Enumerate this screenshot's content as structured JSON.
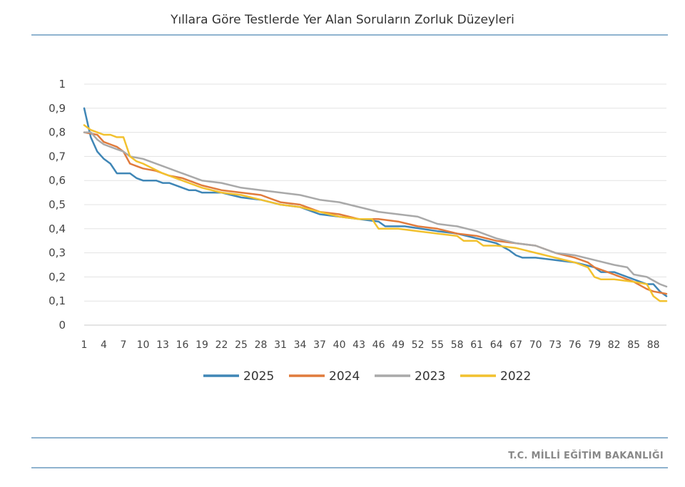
{
  "header": {
    "title": "Yıllara Göre Testlerde Yer Alan Soruların Zorluk Düzeyleri"
  },
  "footer": {
    "text": "T.C. MİLLİ EĞİTİM BAKANLIĞI"
  },
  "chart_data": {
    "type": "line",
    "title": "Yıllara Göre Testlerde Yer Alan Soruların Zorluk Düzeyleri",
    "xlabel": "",
    "ylabel": "",
    "ylim": [
      0,
      1
    ],
    "xlim": [
      1,
      90
    ],
    "y_ticks": [
      "0",
      "0,1",
      "0,2",
      "0,3",
      "0,4",
      "0,5",
      "0,6",
      "0,7",
      "0,8",
      "0,9",
      "1"
    ],
    "x_ticks": [
      1,
      4,
      7,
      10,
      13,
      16,
      19,
      22,
      25,
      28,
      31,
      34,
      37,
      40,
      43,
      46,
      49,
      52,
      55,
      58,
      61,
      64,
      67,
      70,
      73,
      76,
      79,
      82,
      85,
      88
    ],
    "grid": true,
    "legend_position": "bottom",
    "series": [
      {
        "name": "2025",
        "color": "#3f86b6",
        "points": [
          [
            1,
            0.9
          ],
          [
            2,
            0.78
          ],
          [
            3,
            0.72
          ],
          [
            4,
            0.69
          ],
          [
            5,
            0.67
          ],
          [
            6,
            0.63
          ],
          [
            8,
            0.63
          ],
          [
            9,
            0.61
          ],
          [
            10,
            0.6
          ],
          [
            12,
            0.6
          ],
          [
            13,
            0.59
          ],
          [
            14,
            0.59
          ],
          [
            16,
            0.57
          ],
          [
            17,
            0.56
          ],
          [
            18,
            0.56
          ],
          [
            19,
            0.55
          ],
          [
            22,
            0.55
          ],
          [
            25,
            0.53
          ],
          [
            28,
            0.52
          ],
          [
            31,
            0.5
          ],
          [
            34,
            0.49
          ],
          [
            37,
            0.46
          ],
          [
            40,
            0.45
          ],
          [
            43,
            0.44
          ],
          [
            46,
            0.43
          ],
          [
            47,
            0.41
          ],
          [
            50,
            0.41
          ],
          [
            55,
            0.39
          ],
          [
            58,
            0.38
          ],
          [
            61,
            0.36
          ],
          [
            64,
            0.34
          ],
          [
            66,
            0.31
          ],
          [
            67,
            0.29
          ],
          [
            68,
            0.28
          ],
          [
            70,
            0.28
          ],
          [
            73,
            0.27
          ],
          [
            76,
            0.26
          ],
          [
            79,
            0.24
          ],
          [
            80,
            0.22
          ],
          [
            82,
            0.22
          ],
          [
            85,
            0.19
          ],
          [
            87,
            0.17
          ],
          [
            88,
            0.17
          ],
          [
            89,
            0.14
          ],
          [
            90,
            0.12
          ]
        ]
      },
      {
        "name": "2024",
        "color": "#e07b3c",
        "points": [
          [
            1,
            0.8
          ],
          [
            3,
            0.79
          ],
          [
            4,
            0.76
          ],
          [
            5,
            0.75
          ],
          [
            6,
            0.74
          ],
          [
            7,
            0.72
          ],
          [
            8,
            0.67
          ],
          [
            9,
            0.66
          ],
          [
            10,
            0.65
          ],
          [
            12,
            0.64
          ],
          [
            14,
            0.62
          ],
          [
            16,
            0.61
          ],
          [
            19,
            0.58
          ],
          [
            22,
            0.56
          ],
          [
            25,
            0.55
          ],
          [
            28,
            0.54
          ],
          [
            31,
            0.51
          ],
          [
            34,
            0.5
          ],
          [
            37,
            0.47
          ],
          [
            40,
            0.46
          ],
          [
            43,
            0.44
          ],
          [
            46,
            0.44
          ],
          [
            49,
            0.43
          ],
          [
            52,
            0.41
          ],
          [
            55,
            0.4
          ],
          [
            58,
            0.38
          ],
          [
            61,
            0.37
          ],
          [
            64,
            0.35
          ],
          [
            67,
            0.34
          ],
          [
            70,
            0.33
          ],
          [
            73,
            0.3
          ],
          [
            76,
            0.28
          ],
          [
            78,
            0.26
          ],
          [
            79,
            0.24
          ],
          [
            81,
            0.22
          ],
          [
            83,
            0.2
          ],
          [
            85,
            0.18
          ],
          [
            87,
            0.15
          ],
          [
            88,
            0.14
          ],
          [
            90,
            0.13
          ]
        ]
      },
      {
        "name": "2023",
        "color": "#a9a9a9",
        "points": [
          [
            1,
            0.8
          ],
          [
            2,
            0.8
          ],
          [
            3,
            0.77
          ],
          [
            4,
            0.75
          ],
          [
            5,
            0.74
          ],
          [
            6,
            0.73
          ],
          [
            7,
            0.72
          ],
          [
            8,
            0.7
          ],
          [
            10,
            0.69
          ],
          [
            13,
            0.66
          ],
          [
            16,
            0.63
          ],
          [
            19,
            0.6
          ],
          [
            22,
            0.59
          ],
          [
            25,
            0.57
          ],
          [
            28,
            0.56
          ],
          [
            31,
            0.55
          ],
          [
            34,
            0.54
          ],
          [
            37,
            0.52
          ],
          [
            40,
            0.51
          ],
          [
            43,
            0.49
          ],
          [
            46,
            0.47
          ],
          [
            49,
            0.46
          ],
          [
            52,
            0.45
          ],
          [
            55,
            0.42
          ],
          [
            58,
            0.41
          ],
          [
            61,
            0.39
          ],
          [
            64,
            0.36
          ],
          [
            67,
            0.34
          ],
          [
            70,
            0.33
          ],
          [
            73,
            0.3
          ],
          [
            76,
            0.29
          ],
          [
            79,
            0.27
          ],
          [
            82,
            0.25
          ],
          [
            84,
            0.24
          ],
          [
            85,
            0.21
          ],
          [
            87,
            0.2
          ],
          [
            89,
            0.17
          ],
          [
            90,
            0.16
          ]
        ]
      },
      {
        "name": "2022",
        "color": "#f2c12e",
        "points": [
          [
            1,
            0.83
          ],
          [
            2,
            0.81
          ],
          [
            3,
            0.8
          ],
          [
            4,
            0.79
          ],
          [
            5,
            0.79
          ],
          [
            6,
            0.78
          ],
          [
            7,
            0.78
          ],
          [
            8,
            0.7
          ],
          [
            9,
            0.68
          ],
          [
            10,
            0.67
          ],
          [
            13,
            0.63
          ],
          [
            16,
            0.6
          ],
          [
            19,
            0.57
          ],
          [
            22,
            0.55
          ],
          [
            25,
            0.54
          ],
          [
            28,
            0.52
          ],
          [
            31,
            0.5
          ],
          [
            34,
            0.49
          ],
          [
            37,
            0.47
          ],
          [
            40,
            0.45
          ],
          [
            43,
            0.44
          ],
          [
            45,
            0.44
          ],
          [
            46,
            0.4
          ],
          [
            49,
            0.4
          ],
          [
            52,
            0.39
          ],
          [
            55,
            0.38
          ],
          [
            58,
            0.37
          ],
          [
            59,
            0.35
          ],
          [
            61,
            0.35
          ],
          [
            62,
            0.33
          ],
          [
            64,
            0.33
          ],
          [
            67,
            0.32
          ],
          [
            70,
            0.3
          ],
          [
            73,
            0.28
          ],
          [
            76,
            0.26
          ],
          [
            78,
            0.24
          ],
          [
            79,
            0.2
          ],
          [
            80,
            0.19
          ],
          [
            82,
            0.19
          ],
          [
            85,
            0.18
          ],
          [
            87,
            0.17
          ],
          [
            88,
            0.12
          ],
          [
            89,
            0.1
          ],
          [
            90,
            0.1
          ]
        ]
      }
    ]
  }
}
